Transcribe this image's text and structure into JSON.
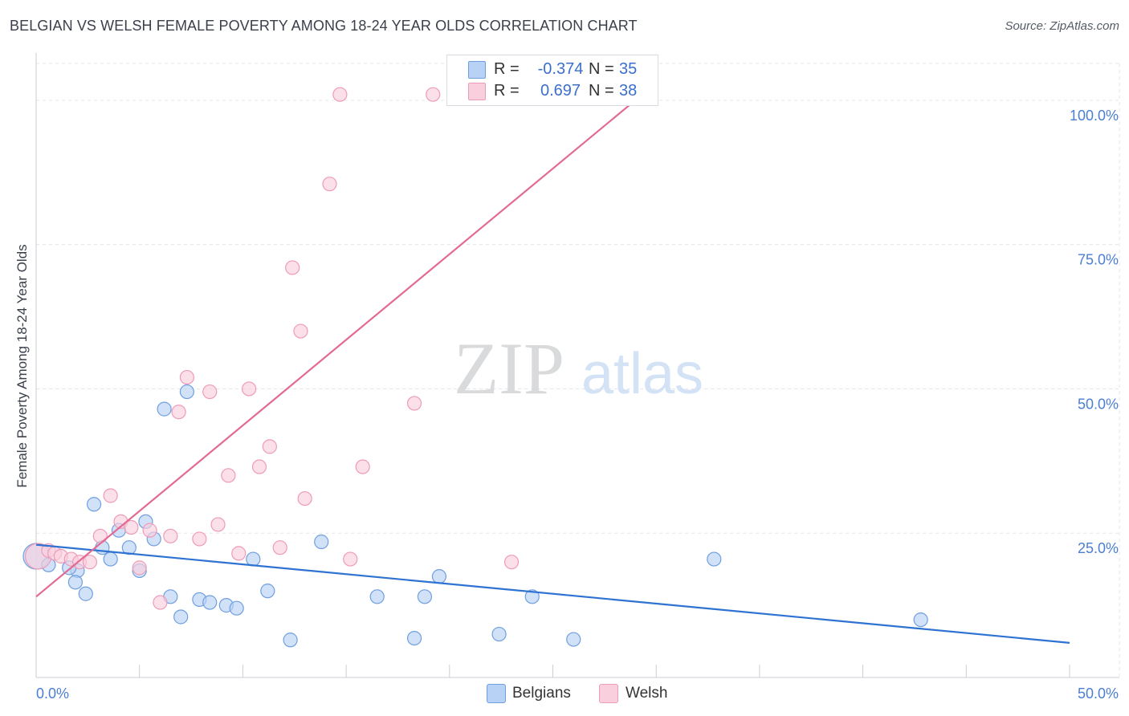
{
  "title": "BELGIAN VS WELSH FEMALE POVERTY AMONG 18-24 YEAR OLDS CORRELATION CHART",
  "source": "Source: ZipAtlas.com",
  "watermark": {
    "zip": "ZIP",
    "atlas": "atlas"
  },
  "colors": {
    "belgians_fill": "#b8d2f5",
    "belgians_stroke": "#6f9fe0",
    "belgians_line": "#2f73d2",
    "welsh_fill": "#f9cfdd",
    "welsh_stroke": "#ee9bb8",
    "welsh_line": "#e36a92",
    "tick_label": "#4a7fd4",
    "grid": "#e3e6ea"
  },
  "legend": {
    "rows": [
      {
        "r_label": "R =",
        "r_value": "-0.374",
        "n_label": "N =",
        "n_value": "35"
      },
      {
        "r_label": "R =",
        "r_value": "0.697",
        "n_label": "N =",
        "n_value": "38"
      }
    ]
  },
  "bottom_legend": {
    "belgians": "Belgians",
    "welsh": "Welsh"
  },
  "chart_data": {
    "type": "scatter",
    "title": "BELGIAN VS WELSH FEMALE POVERTY AMONG 18-24 YEAR OLDS CORRELATION CHART",
    "xlabel": "",
    "ylabel": "Female Poverty Among 18-24 Year Olds",
    "xlim": [
      0,
      50
    ],
    "ylim": [
      0,
      100
    ],
    "x_tick_labels": [
      {
        "value": 0,
        "label": "0.0%"
      },
      {
        "value": 50,
        "label": "50.0%"
      }
    ],
    "y_tick_labels": [
      {
        "value": 25,
        "label": "25.0%"
      },
      {
        "value": 50,
        "label": "50.0%"
      },
      {
        "value": 75,
        "label": "75.0%"
      },
      {
        "value": 100,
        "label": "100.0%"
      }
    ],
    "grid": true,
    "legend_position": "top-center",
    "series": [
      {
        "name": "Belgians",
        "r": -0.374,
        "n": 35,
        "trend": {
          "x": [
            0,
            50
          ],
          "y": [
            23.0,
            6.0
          ]
        },
        "points": [
          {
            "x": 0.0,
            "y": 21.0,
            "big": true
          },
          {
            "x": 0.6,
            "y": 19.5
          },
          {
            "x": 2.0,
            "y": 18.5
          },
          {
            "x": 1.6,
            "y": 19.0
          },
          {
            "x": 1.9,
            "y": 16.5
          },
          {
            "x": 2.4,
            "y": 14.5
          },
          {
            "x": 2.8,
            "y": 30.0
          },
          {
            "x": 3.2,
            "y": 22.5
          },
          {
            "x": 3.6,
            "y": 20.5
          },
          {
            "x": 4.0,
            "y": 25.5
          },
          {
            "x": 4.5,
            "y": 22.5
          },
          {
            "x": 5.0,
            "y": 18.5
          },
          {
            "x": 5.3,
            "y": 27.0
          },
          {
            "x": 5.7,
            "y": 24.0
          },
          {
            "x": 6.2,
            "y": 46.5
          },
          {
            "x": 6.5,
            "y": 14.0
          },
          {
            "x": 7.0,
            "y": 10.5
          },
          {
            "x": 7.3,
            "y": 49.5
          },
          {
            "x": 7.9,
            "y": 13.5
          },
          {
            "x": 8.4,
            "y": 13.0
          },
          {
            "x": 9.2,
            "y": 12.5
          },
          {
            "x": 9.7,
            "y": 12.0
          },
          {
            "x": 10.5,
            "y": 20.5
          },
          {
            "x": 11.2,
            "y": 15.0
          },
          {
            "x": 12.3,
            "y": 6.5
          },
          {
            "x": 13.8,
            "y": 23.5
          },
          {
            "x": 16.5,
            "y": 14.0
          },
          {
            "x": 18.3,
            "y": 6.8
          },
          {
            "x": 18.8,
            "y": 14.0
          },
          {
            "x": 19.5,
            "y": 17.5
          },
          {
            "x": 22.4,
            "y": 7.5
          },
          {
            "x": 24.0,
            "y": 14.0
          },
          {
            "x": 26.0,
            "y": 6.6
          },
          {
            "x": 32.8,
            "y": 20.5
          },
          {
            "x": 42.8,
            "y": 10.0
          }
        ]
      },
      {
        "name": "Welsh",
        "r": 0.697,
        "n": 38,
        "trend": {
          "x": [
            0,
            30
          ],
          "y": [
            14.0,
            103.0
          ]
        },
        "points": [
          {
            "x": 0.1,
            "y": 21.0,
            "big": true
          },
          {
            "x": 0.6,
            "y": 22.0
          },
          {
            "x": 0.9,
            "y": 21.5
          },
          {
            "x": 1.2,
            "y": 21.0
          },
          {
            "x": 1.7,
            "y": 20.5
          },
          {
            "x": 2.1,
            "y": 20.0
          },
          {
            "x": 2.6,
            "y": 20.0
          },
          {
            "x": 3.1,
            "y": 24.5
          },
          {
            "x": 3.6,
            "y": 31.5
          },
          {
            "x": 4.1,
            "y": 27.0
          },
          {
            "x": 4.6,
            "y": 26.0
          },
          {
            "x": 5.0,
            "y": 19.0
          },
          {
            "x": 5.5,
            "y": 25.5
          },
          {
            "x": 6.0,
            "y": 13.0
          },
          {
            "x": 6.5,
            "y": 24.5
          },
          {
            "x": 6.9,
            "y": 46.0
          },
          {
            "x": 7.3,
            "y": 52.0
          },
          {
            "x": 7.9,
            "y": 24.0
          },
          {
            "x": 8.4,
            "y": 49.5
          },
          {
            "x": 8.8,
            "y": 26.5
          },
          {
            "x": 9.3,
            "y": 35.0
          },
          {
            "x": 9.8,
            "y": 21.5
          },
          {
            "x": 10.3,
            "y": 50.0
          },
          {
            "x": 10.8,
            "y": 36.5
          },
          {
            "x": 11.3,
            "y": 40.0
          },
          {
            "x": 11.8,
            "y": 22.5
          },
          {
            "x": 12.4,
            "y": 71.0
          },
          {
            "x": 12.8,
            "y": 60.0
          },
          {
            "x": 13.0,
            "y": 31.0
          },
          {
            "x": 14.2,
            "y": 85.5
          },
          {
            "x": 14.7,
            "y": 101.0
          },
          {
            "x": 15.2,
            "y": 20.5
          },
          {
            "x": 15.8,
            "y": 36.5
          },
          {
            "x": 18.3,
            "y": 47.5
          },
          {
            "x": 19.2,
            "y": 101.0
          },
          {
            "x": 20.4,
            "y": 101.0
          },
          {
            "x": 23.0,
            "y": 20.0
          },
          {
            "x": 26.5,
            "y": 101.0
          }
        ]
      }
    ]
  }
}
